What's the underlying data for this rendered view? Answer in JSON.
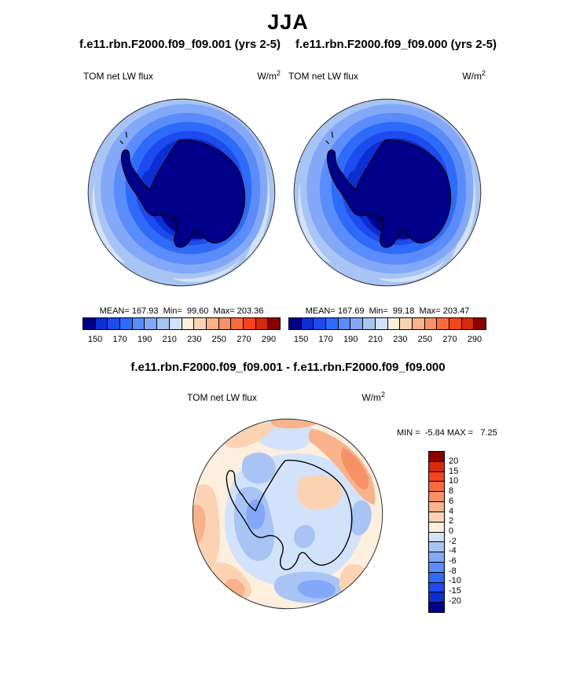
{
  "title": "JJA",
  "panels": [
    {
      "subtitle": "f.e11.rbn.F2000.f09_f09.001 (yrs 2-5)",
      "field_label": "TOM net LW flux",
      "units_base": "W/m",
      "units_exp": "2",
      "stats_text": "MEAN= 167.93  Min=  99.60  Max= 203.36"
    },
    {
      "subtitle": "f.e11.rbn.F2000.f09_f09.000 (yrs 2-5)",
      "field_label": "TOM net LW flux",
      "units_base": "W/m",
      "units_exp": "2",
      "stats_text": "MEAN= 167.69  Min=  99.18  Max= 203.47"
    }
  ],
  "colorbar": {
    "ticks": [
      "150",
      "170",
      "190",
      "210",
      "230",
      "250",
      "270",
      "290"
    ]
  },
  "palette": [
    "#00008b",
    "#0c2fd5",
    "#1e4bee",
    "#2f6bfa",
    "#5b8cfb",
    "#84a8f8",
    "#a8c4f5",
    "#d2e2fa",
    "#fdeede",
    "#fbd3b3",
    "#f9b289",
    "#f79266",
    "#f76b3d",
    "#f4441c",
    "#d62a0e",
    "#8b0000"
  ],
  "diff": {
    "title": "f.e11.rbn.F2000.f09_f09.001 - f.e11.rbn.F2000.f09_f09.000",
    "field_label": "TOM net LW flux",
    "units_base": "W/m",
    "units_exp": "2",
    "minmax_text": "MIN =  -5.84 MAX =   7.25",
    "colorbar": {
      "labels": [
        "20",
        "15",
        "10",
        "8",
        "6",
        "4",
        "2",
        "0",
        "-2",
        "-4",
        "-6",
        "-8",
        "-10",
        "-15",
        "-20"
      ],
      "colors": [
        "#8b0000",
        "#d62a0e",
        "#f4441c",
        "#f76b3d",
        "#f79266",
        "#f9b289",
        "#fbd3b3",
        "#fdeede",
        "#d2e2fa",
        "#a8c4f5",
        "#84a8f8",
        "#5b8cfb",
        "#2f6bfa",
        "#1e4bee",
        "#0c2fd5",
        "#00008b"
      ]
    }
  },
  "chart_data": [
    {
      "type": "heatmap",
      "subtype": "south-polar-stereographic-contour-map",
      "season": "JJA",
      "title": "f.e11.rbn.F2000.f09_f09.001 (yrs 2-5)",
      "variable": "TOM net LW flux",
      "units": "W/m2",
      "region": "Antarctica / southern polar cap",
      "stats": {
        "mean": 167.93,
        "min": 99.6,
        "max": 203.36
      },
      "colorbar_ticks": [
        150,
        170,
        190,
        210,
        230,
        250,
        270,
        290
      ],
      "contour_interval": 10,
      "colorbar_range": [
        140,
        300
      ],
      "legend_position": "below"
    },
    {
      "type": "heatmap",
      "subtype": "south-polar-stereographic-contour-map",
      "season": "JJA",
      "title": "f.e11.rbn.F2000.f09_f09.000 (yrs 2-5)",
      "variable": "TOM net LW flux",
      "units": "W/m2",
      "region": "Antarctica / southern polar cap",
      "stats": {
        "mean": 167.69,
        "min": 99.18,
        "max": 203.47
      },
      "colorbar_ticks": [
        150,
        170,
        190,
        210,
        230,
        250,
        270,
        290
      ],
      "contour_interval": 10,
      "colorbar_range": [
        140,
        300
      ],
      "legend_position": "below"
    },
    {
      "type": "heatmap",
      "subtype": "south-polar-stereographic-contour-map",
      "season": "JJA",
      "title": "f.e11.rbn.F2000.f09_f09.001 - f.e11.rbn.F2000.f09_f09.000",
      "variable": "TOM net LW flux",
      "units": "W/m2",
      "region": "Antarctica / southern polar cap",
      "stats": {
        "min": -5.84,
        "max": 7.25
      },
      "colorbar_levels": [
        -20,
        -15,
        -10,
        -8,
        -6,
        -4,
        -2,
        0,
        2,
        4,
        6,
        8,
        10,
        15,
        20
      ],
      "legend_position": "right"
    }
  ]
}
